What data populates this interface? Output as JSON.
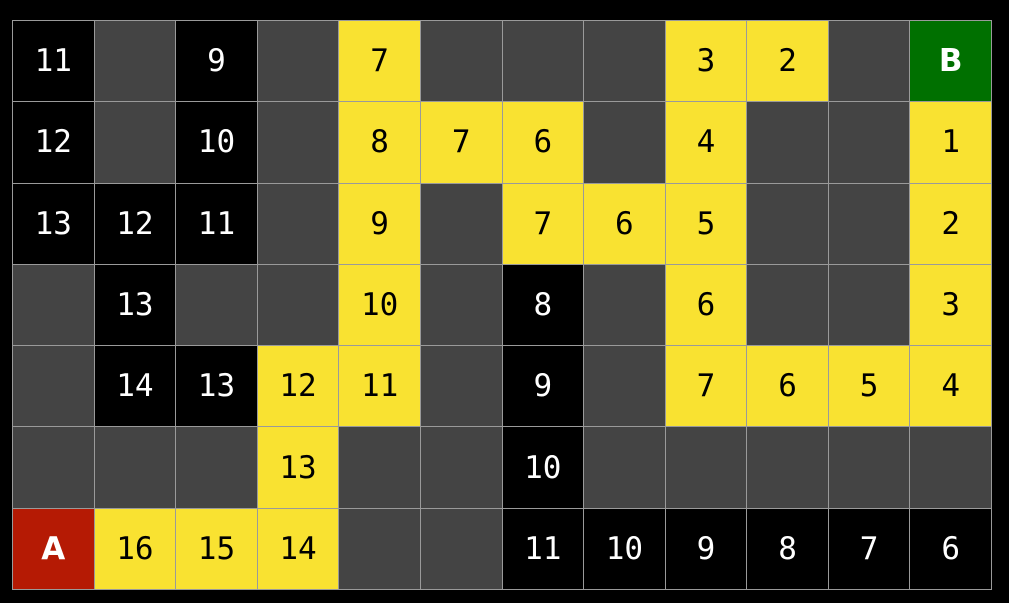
{
  "colors": {
    "visited": "#000000",
    "wall": "#444444",
    "path": "#f9e231",
    "start": "#b51a04",
    "goal": "#007000"
  },
  "legend_types": {
    "b": "visited",
    "g": "wall",
    "y": "path",
    "A": "start",
    "B": "goal"
  },
  "grid": [
    [
      [
        "b",
        "11"
      ],
      [
        "g",
        ""
      ],
      [
        "b",
        "9"
      ],
      [
        "g",
        ""
      ],
      [
        "y",
        "7"
      ],
      [
        "g",
        ""
      ],
      [
        "g",
        ""
      ],
      [
        "g",
        ""
      ],
      [
        "y",
        "3"
      ],
      [
        "y",
        "2"
      ],
      [
        "g",
        ""
      ],
      [
        "B",
        "B"
      ]
    ],
    [
      [
        "b",
        "12"
      ],
      [
        "g",
        ""
      ],
      [
        "b",
        "10"
      ],
      [
        "g",
        ""
      ],
      [
        "y",
        "8"
      ],
      [
        "y",
        "7"
      ],
      [
        "y",
        "6"
      ],
      [
        "g",
        ""
      ],
      [
        "y",
        "4"
      ],
      [
        "g",
        ""
      ],
      [
        "g",
        ""
      ],
      [
        "y",
        "1"
      ]
    ],
    [
      [
        "b",
        "13"
      ],
      [
        "b",
        "12"
      ],
      [
        "b",
        "11"
      ],
      [
        "g",
        ""
      ],
      [
        "y",
        "9"
      ],
      [
        "g",
        ""
      ],
      [
        "y",
        "7"
      ],
      [
        "y",
        "6"
      ],
      [
        "y",
        "5"
      ],
      [
        "g",
        ""
      ],
      [
        "g",
        ""
      ],
      [
        "y",
        "2"
      ]
    ],
    [
      [
        "g",
        ""
      ],
      [
        "b",
        "13"
      ],
      [
        "g",
        ""
      ],
      [
        "g",
        ""
      ],
      [
        "y",
        "10"
      ],
      [
        "g",
        ""
      ],
      [
        "b",
        "8"
      ],
      [
        "g",
        ""
      ],
      [
        "y",
        "6"
      ],
      [
        "g",
        ""
      ],
      [
        "g",
        ""
      ],
      [
        "y",
        "3"
      ]
    ],
    [
      [
        "g",
        ""
      ],
      [
        "b",
        "14"
      ],
      [
        "b",
        "13"
      ],
      [
        "y",
        "12"
      ],
      [
        "y",
        "11"
      ],
      [
        "g",
        ""
      ],
      [
        "b",
        "9"
      ],
      [
        "g",
        ""
      ],
      [
        "y",
        "7"
      ],
      [
        "y",
        "6"
      ],
      [
        "y",
        "5"
      ],
      [
        "y",
        "4"
      ]
    ],
    [
      [
        "g",
        ""
      ],
      [
        "g",
        ""
      ],
      [
        "g",
        ""
      ],
      [
        "y",
        "13"
      ],
      [
        "g",
        ""
      ],
      [
        "g",
        ""
      ],
      [
        "b",
        "10"
      ],
      [
        "g",
        ""
      ],
      [
        "g",
        ""
      ],
      [
        "g",
        ""
      ],
      [
        "g",
        ""
      ],
      [
        "g",
        ""
      ]
    ],
    [
      [
        "A",
        "A"
      ],
      [
        "y",
        "16"
      ],
      [
        "y",
        "15"
      ],
      [
        "y",
        "14"
      ],
      [
        "g",
        ""
      ],
      [
        "g",
        ""
      ],
      [
        "b",
        "11"
      ],
      [
        "b",
        "10"
      ],
      [
        "b",
        "9"
      ],
      [
        "b",
        "8"
      ],
      [
        "b",
        "7"
      ],
      [
        "b",
        "6"
      ]
    ]
  ]
}
